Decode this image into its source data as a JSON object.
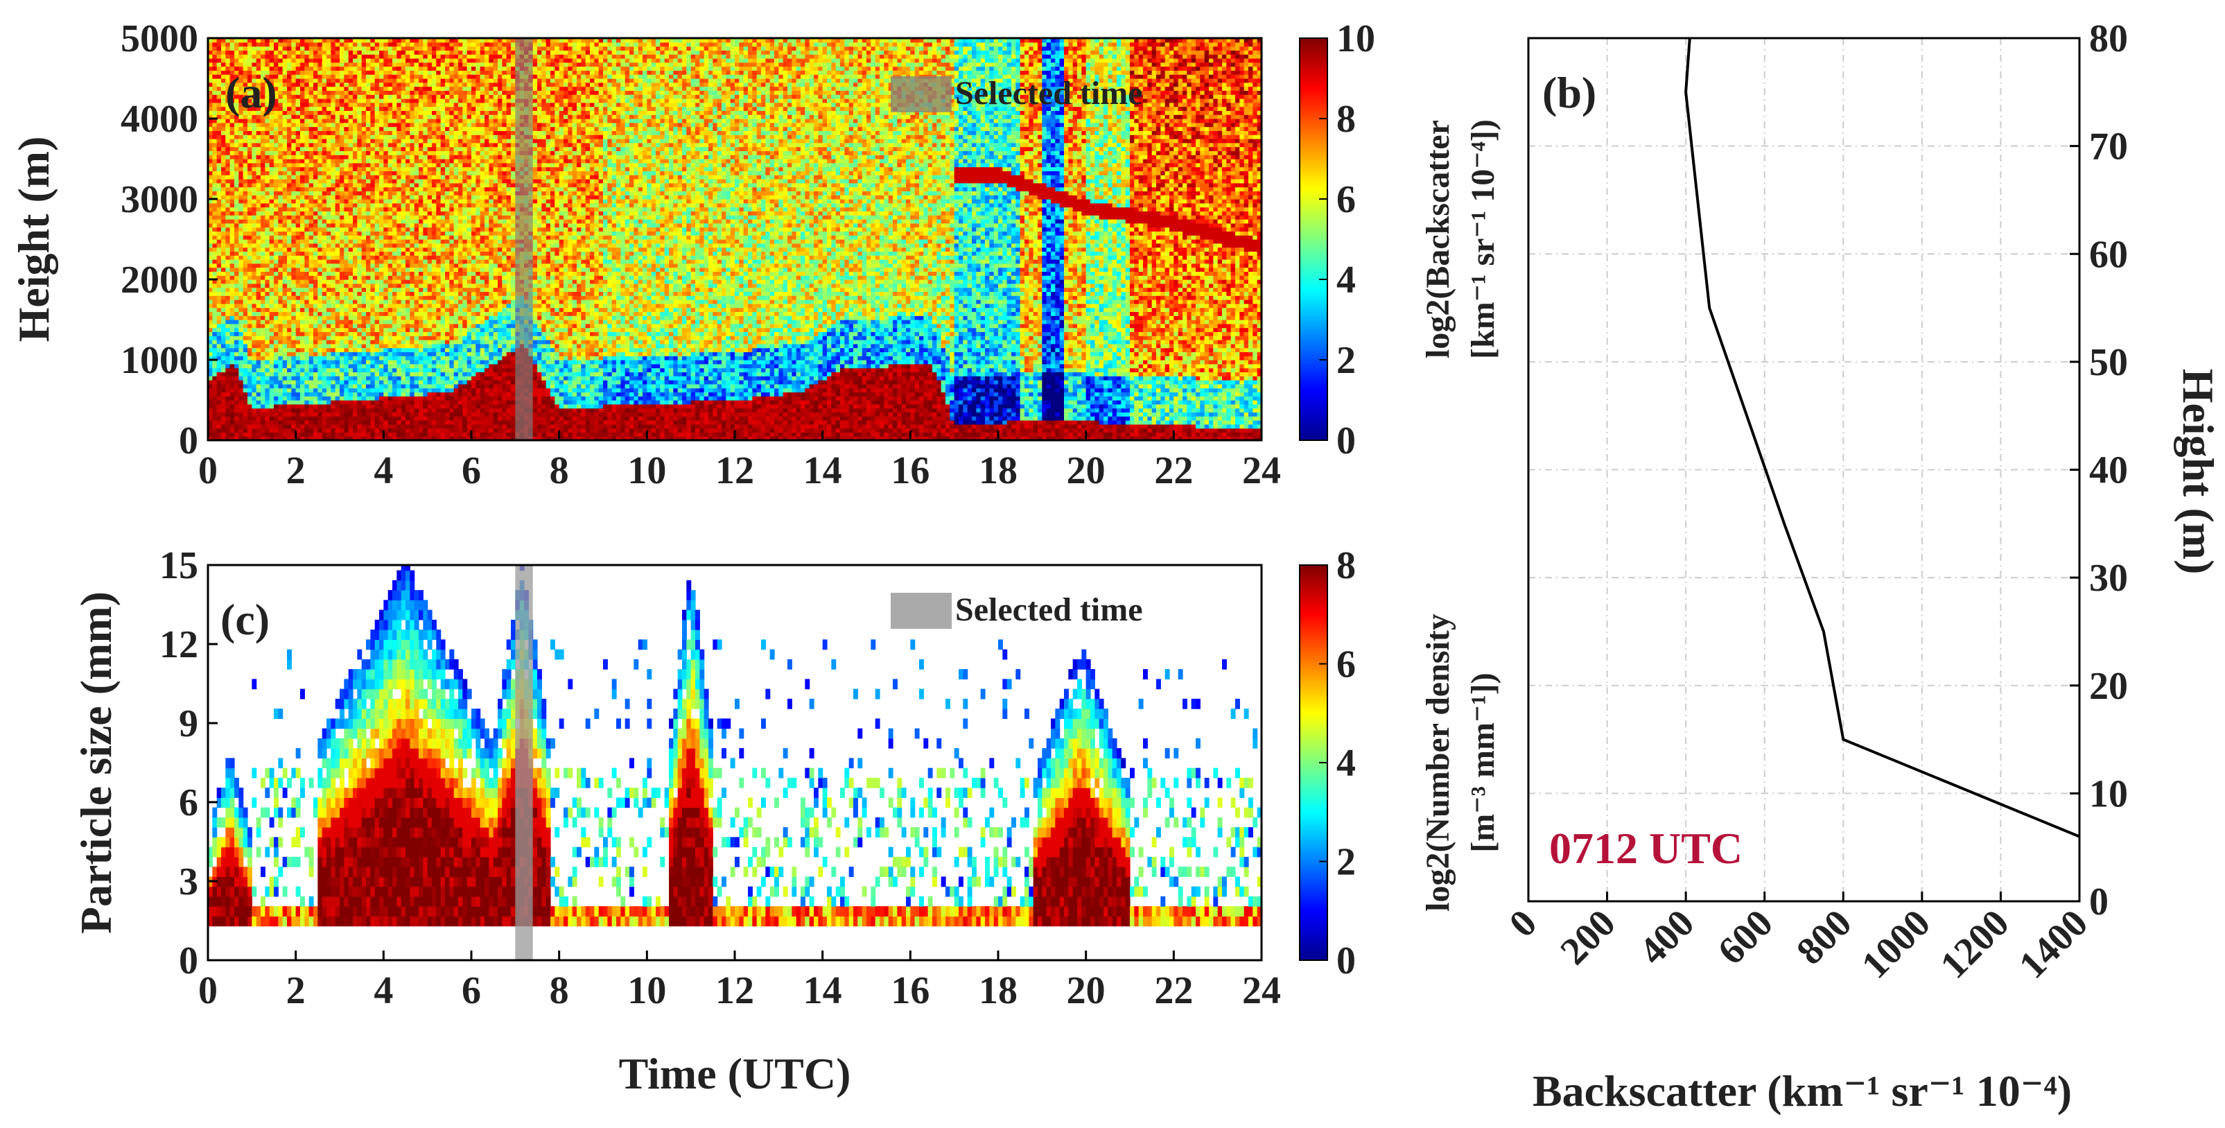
{
  "figure": {
    "panel_a_label": "(a)",
    "panel_b_label": "(b)",
    "panel_c_label": "(c)",
    "legend_text": "Selected time",
    "timestamp": "0712 UTC",
    "timestamp_color": "#b5123a"
  },
  "chart_data": [
    {
      "id": "a",
      "type": "heatmap",
      "title": "(a)",
      "xlabel": "",
      "ylabel": "Height (m)",
      "xlim": [
        0,
        24
      ],
      "ylim": [
        0,
        5000
      ],
      "x_ticks": [
        "0",
        "2",
        "4",
        "6",
        "8",
        "10",
        "12",
        "14",
        "16",
        "18",
        "20",
        "22",
        "24"
      ],
      "y_ticks": [
        "0",
        "1000",
        "2000",
        "3000",
        "4000",
        "5000"
      ],
      "colorbar": {
        "label": "log2(Backscatter [km⁻¹ sr⁻¹ 10⁻⁴])",
        "label_main": "log2(Backscatter",
        "label_units": "[km⁻¹ sr⁻¹ 10⁻⁴])",
        "range": [
          0,
          10
        ],
        "ticks": [
          "0",
          "2",
          "4",
          "6",
          "8",
          "10"
        ]
      },
      "selected_time_utc": [
        7.0,
        7.4
      ],
      "legend": "Selected time",
      "features": {
        "boundary_layer_top_m": [
          [
            0,
            750
          ],
          [
            0.6,
            950
          ],
          [
            1.0,
            400
          ],
          [
            2.0,
            450
          ],
          [
            3.0,
            480
          ],
          [
            5.5,
            600
          ],
          [
            7.2,
            1200
          ],
          [
            8.0,
            400
          ],
          [
            12.0,
            500
          ],
          [
            13.5,
            600
          ],
          [
            14.5,
            900
          ],
          [
            16.5,
            950
          ],
          [
            17.0,
            200
          ],
          [
            19.5,
            250
          ],
          [
            21.0,
            200
          ],
          [
            24.0,
            150
          ]
        ],
        "cloud_layer_m": [
          [
            18.0,
            3300
          ],
          [
            20.0,
            2900
          ],
          [
            22.0,
            2700
          ],
          [
            24.0,
            2400
          ]
        ]
      }
    },
    {
      "id": "b",
      "type": "line",
      "title": "(b)",
      "xlabel": "Backscatter (km⁻¹ sr⁻¹ 10⁻⁴)",
      "ylabel": "Height (m)",
      "xlim": [
        0,
        1400
      ],
      "ylim": [
        0,
        80
      ],
      "x_ticks": [
        "0",
        "200",
        "400",
        "600",
        "800",
        "1000",
        "1200",
        "1400"
      ],
      "y_ticks": [
        "0",
        "10",
        "20",
        "30",
        "40",
        "50",
        "60",
        "70",
        "80"
      ],
      "series": [
        {
          "name": "0712 UTC",
          "x": [
            1400,
            800,
            750,
            650,
            460,
            400,
            410
          ],
          "y": [
            6,
            15,
            25,
            35,
            55,
            75,
            80
          ]
        }
      ]
    },
    {
      "id": "c",
      "type": "heatmap",
      "title": "(c)",
      "xlabel": "Time (UTC)",
      "ylabel": "Particle size (mm)",
      "xlim": [
        0,
        24
      ],
      "ylim": [
        0,
        15
      ],
      "x_ticks": [
        "0",
        "2",
        "4",
        "6",
        "8",
        "10",
        "12",
        "14",
        "16",
        "18",
        "20",
        "22",
        "24"
      ],
      "y_ticks": [
        "0",
        "3",
        "6",
        "9",
        "12",
        "15"
      ],
      "colorbar": {
        "label": "log2(Number density [m⁻³ mm⁻¹])",
        "label_main": "log2(Number density",
        "label_units": "[m⁻³ mm⁻¹])",
        "range": [
          0,
          8
        ],
        "ticks": [
          "0",
          "2",
          "4",
          "6",
          "8"
        ]
      },
      "selected_time_utc": [
        7.0,
        7.4
      ],
      "legend": "Selected time",
      "features": {
        "precip_events_utc_maxsize_mm": [
          [
            0.0,
            1.0,
            8
          ],
          [
            2.5,
            6.5,
            15
          ],
          [
            6.5,
            7.8,
            15
          ],
          [
            10.5,
            11.5,
            15
          ],
          [
            18.8,
            21.0,
            12
          ]
        ]
      }
    }
  ]
}
